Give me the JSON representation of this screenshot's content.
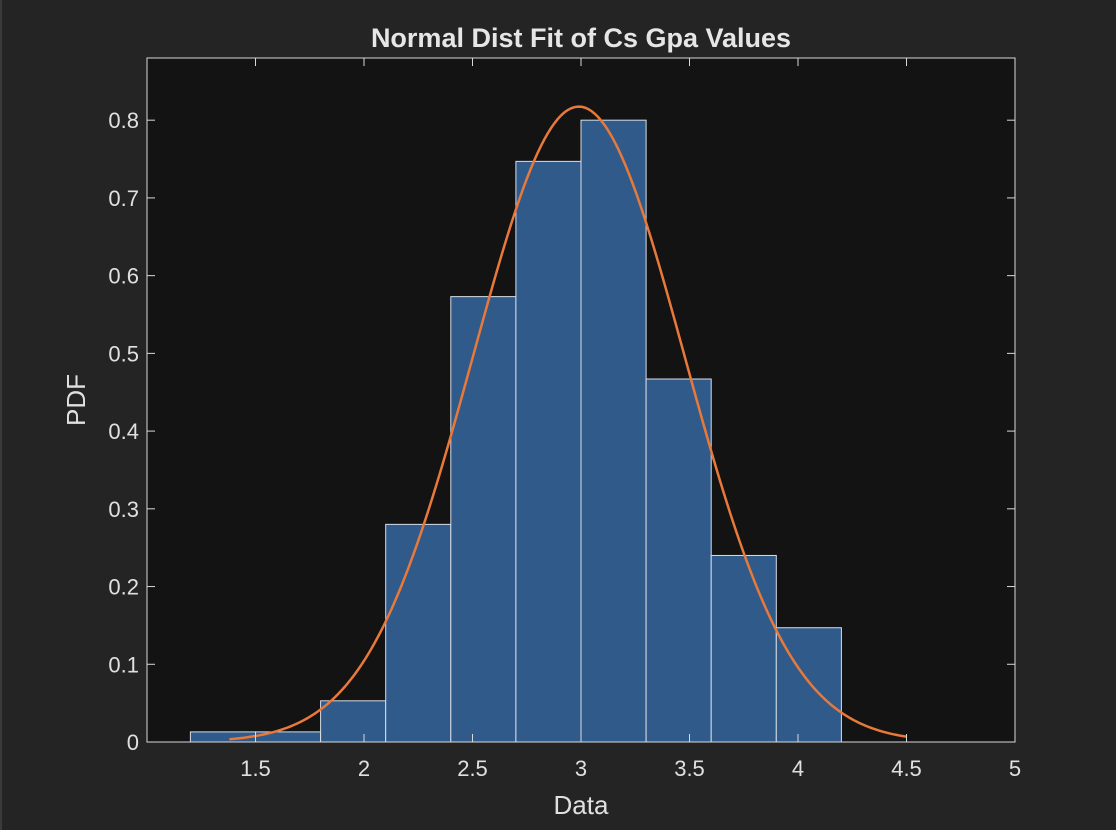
{
  "chart_data": {
    "type": "bar",
    "title": "Normal Dist Fit of Cs Gpa Values",
    "xlabel": "Data",
    "ylabel": "PDF",
    "xlim": [
      1.0,
      5.0
    ],
    "ylim": [
      0,
      0.88
    ],
    "xticks": [
      1.5,
      2,
      2.5,
      3,
      3.5,
      4,
      4.5,
      5
    ],
    "xtick_labels": [
      "1.5",
      "2",
      "2.5",
      "3",
      "3.5",
      "4",
      "4.5",
      "5"
    ],
    "yticks": [
      0,
      0.1,
      0.2,
      0.3,
      0.4,
      0.5,
      0.6,
      0.7,
      0.8
    ],
    "ytick_labels": [
      "0",
      "0.1",
      "0.2",
      "0.3",
      "0.4",
      "0.5",
      "0.6",
      "0.7",
      "0.8"
    ],
    "grid": false,
    "histogram": {
      "bin_edges": [
        1.2,
        1.5,
        1.8,
        2.1,
        2.4,
        2.7,
        3.0,
        3.3,
        3.6,
        3.9,
        4.2
      ],
      "values": [
        0.013,
        0.013,
        0.053,
        0.28,
        0.573,
        0.747,
        0.8,
        0.467,
        0.24,
        0.147
      ],
      "color": "#2f5a8a",
      "edge_color": "#d8dee8"
    },
    "fit_curve": {
      "type": "normal",
      "mean": 2.99,
      "std": 0.488,
      "x_range": [
        1.38,
        4.5
      ],
      "color": "#e8793a"
    }
  }
}
